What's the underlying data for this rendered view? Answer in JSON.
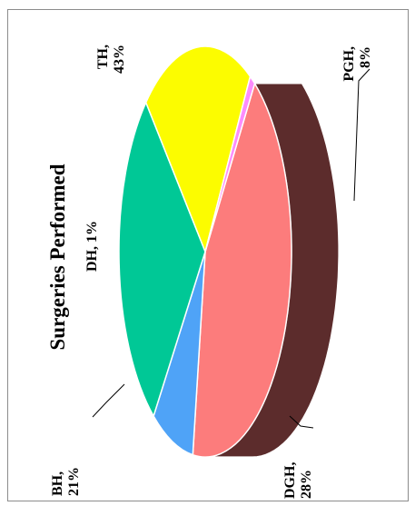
{
  "chart_data": {
    "type": "pie",
    "style": "3d",
    "orientation": "rotated-90-ccw",
    "title": "Surgeries Performed",
    "slices": [
      {
        "label": "TH",
        "value": 43,
        "display": "43%",
        "color": "#fc7c7c",
        "side_color": "#5c2c2c"
      },
      {
        "label": "PGH",
        "value": 8,
        "display": "8%",
        "color": "#4fa3f7",
        "side_color": "#23507c"
      },
      {
        "label": "DGH",
        "value": 28,
        "display": "28%",
        "color": "#00c896",
        "side_color": "#007656"
      },
      {
        "label": "BH",
        "value": 21,
        "display": "21%",
        "color": "#fcfc00",
        "side_color": "#8a8a00"
      },
      {
        "label": "DH",
        "value": 1,
        "display": "1%",
        "color": "#fc8cfc",
        "side_color": "#8c3c8c"
      }
    ],
    "legend": "none"
  }
}
